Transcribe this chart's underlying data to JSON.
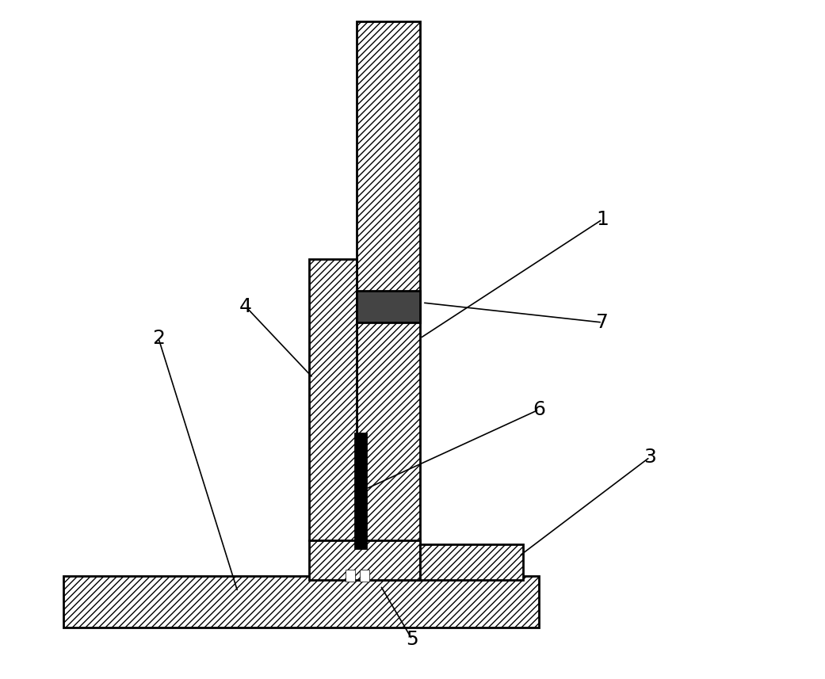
{
  "background_color": "#ffffff",
  "figsize": [
    10.41,
    8.57
  ],
  "dpi": 100,
  "hatch_pattern": "////",
  "face_color": "#ffffff",
  "edge_color": "#000000",
  "black_fill": "#000000",
  "linewidth": 2.0,
  "ann_fontsize": 18
}
